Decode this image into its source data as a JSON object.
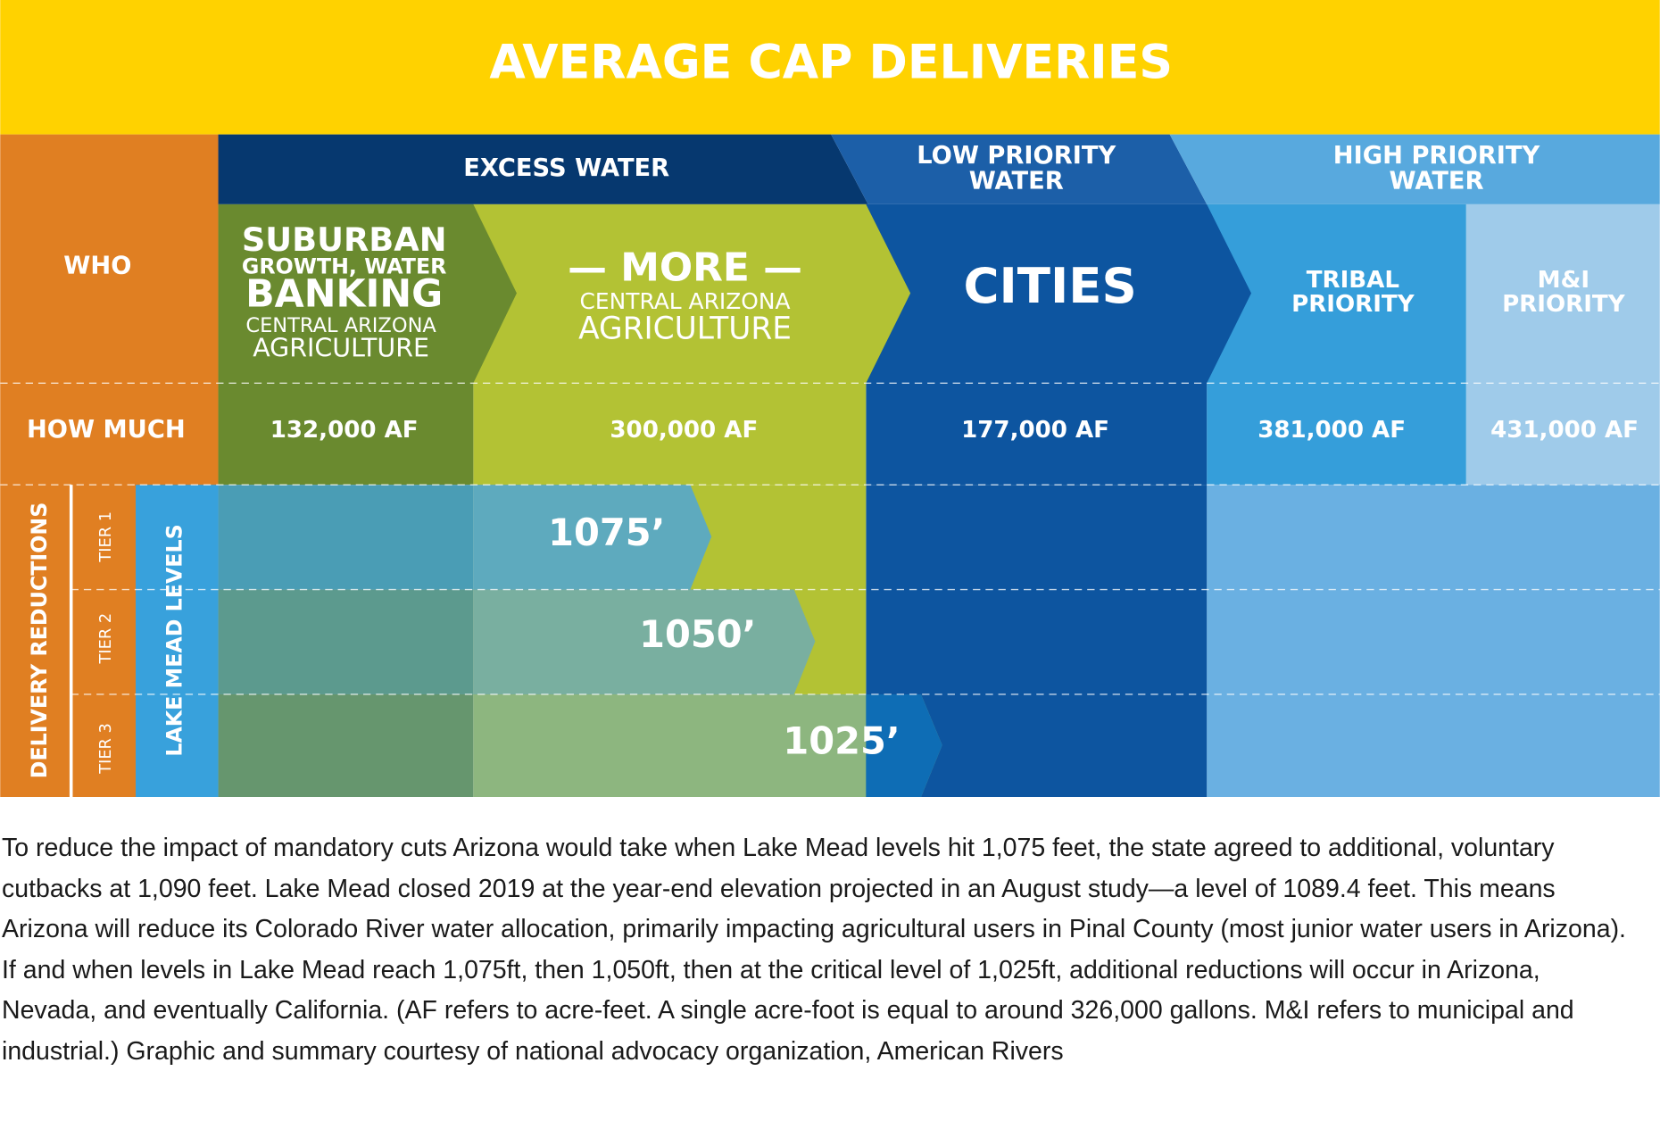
{
  "title": "AVERAGE CAP DELIVERIES",
  "groups": [
    {
      "lines": [
        "EXCESS WATER"
      ]
    },
    {
      "lines": [
        "LOW PRIORITY",
        "WATER"
      ]
    },
    {
      "lines": [
        "HIGH PRIORITY",
        "WATER"
      ]
    }
  ],
  "row_labels": {
    "who": "WHO",
    "how_much": "HOW MUCH",
    "delivery_reductions": "DELIVERY REDUCTIONS",
    "lake_mead_levels": "LAKE MEAD LEVELS"
  },
  "users": [
    {
      "headline": [
        "SUBURBAN",
        "GROWTH, WATER",
        "BANKING"
      ],
      "subline": [
        "CENTRAL ARIZONA",
        "AGRICULTURE"
      ],
      "amount": "132,000 AF"
    },
    {
      "headline": [
        "— MORE —"
      ],
      "subline": [
        "CENTRAL ARIZONA",
        "AGRICULTURE"
      ],
      "amount": "300,000 AF"
    },
    {
      "headline": [
        "CITIES"
      ],
      "amount": "177,000 AF"
    },
    {
      "headline": [
        "TRIBAL",
        "PRIORITY"
      ],
      "amount": "381,000 AF"
    },
    {
      "headline": [
        "M&I",
        "PRIORITY"
      ],
      "amount": "431,000 AF"
    }
  ],
  "tiers": [
    {
      "label": "TIER 1",
      "level": "1075’"
    },
    {
      "label": "TIER 2",
      "level": "1050’"
    },
    {
      "label": "TIER 3",
      "level": "1025’"
    }
  ],
  "caption": "To reduce the impact of mandatory cuts Arizona would take when Lake Mead levels hit 1,075 feet, the state agreed to additional, voluntary cutbacks at 1,090 feet. Lake Mead closed 2019 at the year-end elevation projected in an August study—a level of 1089.4 feet. This means Arizona will reduce its Colorado River water allocation, primarily impacting agricultural users in Pinal County (most junior water users in Arizona). If and when levels in Lake Mead reach 1,075ft, then 1,050ft, then at the critical level of 1,025ft, additional reductions will occur in Arizona, Nevada, and eventually California. (AF refers to acre-feet. A single acre-foot is equal to around 326,000 gallons. M&I refers to municipal and industrial.) Graphic and summary courtesy of national advocacy organization, American Rivers"
}
